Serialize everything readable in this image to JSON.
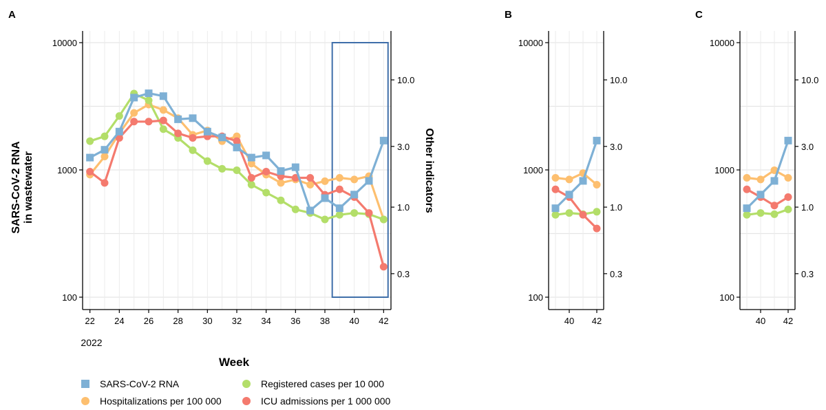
{
  "chart_data": [
    {
      "panel": "A",
      "type": "line",
      "x": [
        22,
        23,
        24,
        25,
        26,
        27,
        28,
        29,
        30,
        31,
        32,
        33,
        34,
        35,
        36,
        37,
        38,
        39,
        40,
        41,
        42
      ],
      "x_ticks": [
        22,
        24,
        26,
        28,
        30,
        32,
        34,
        36,
        38,
        40,
        42
      ],
      "xlim": [
        21.5,
        42.5
      ],
      "year_label": "2022",
      "xlabel": "Week",
      "ylabel_left": [
        "SARS-CoV-2 RNA",
        "in wastewater"
      ],
      "ylabel_right": "Other indicators",
      "left_scale": "log",
      "left_ylim": [
        80,
        15000
      ],
      "left_ticks": [
        {
          "v": 100,
          "label": "100"
        },
        {
          "v": 1000,
          "label": "1000"
        },
        {
          "v": 10000,
          "label": "10000"
        }
      ],
      "right_scale": "log",
      "right_ylim": [
        0.19,
        22
      ],
      "right_ticks": [
        {
          "v": 0.3,
          "label": "0.3"
        },
        {
          "v": 1.0,
          "label": "1.0"
        },
        {
          "v": 3.0,
          "label": "3.0"
        },
        {
          "v": 10.0,
          "label": "10.0"
        }
      ],
      "grid": true,
      "highlight_box": {
        "x": [
          38.5,
          42.3
        ],
        "y": [
          100,
          10000
        ],
        "color": "#3e6ea9"
      },
      "series": [
        {
          "name": "SARS-CoV-2 RNA",
          "axis": "left",
          "marker": "square",
          "color": "#7eb0d5",
          "values": [
            1250,
            1440,
            2000,
            3700,
            4000,
            3800,
            2500,
            2550,
            2000,
            1800,
            1500,
            1250,
            1300,
            980,
            1050,
            480,
            600,
            500,
            640,
            820,
            1700
          ]
        },
        {
          "name": "Hospitalizations per 100 000",
          "axis": "right",
          "marker": "circle",
          "color": "#fdbf6f",
          "values": [
            1.8,
            2.5,
            3.8,
            5.5,
            6.4,
            5.8,
            5.0,
            3.7,
            4.0,
            3.3,
            3.6,
            2.2,
            1.8,
            1.55,
            1.65,
            1.5,
            1.6,
            1.7,
            1.65,
            1.75,
            0.8
          ]
        },
        {
          "name": "Registered cases per 10 000",
          "axis": "right",
          "marker": "circle",
          "color": "#b3de69",
          "values": [
            3.3,
            3.6,
            5.2,
            7.8,
            6.9,
            4.1,
            3.5,
            2.8,
            2.3,
            2.0,
            1.95,
            1.5,
            1.3,
            1.13,
            0.96,
            0.9,
            0.8,
            0.87,
            0.9,
            0.88,
            0.8
          ]
        },
        {
          "name": "ICU admissions per 1 000 000",
          "axis": "right",
          "marker": "circle",
          "color": "#f47a6e",
          "values": [
            1.9,
            1.55,
            3.5,
            4.7,
            4.7,
            4.8,
            3.8,
            3.5,
            3.6,
            3.6,
            3.3,
            1.7,
            1.9,
            1.75,
            1.7,
            1.7,
            1.25,
            1.38,
            1.2,
            0.9,
            0.34
          ]
        }
      ]
    },
    {
      "panel": "B",
      "type": "line",
      "x": [
        39,
        40,
        41,
        42
      ],
      "x_ticks": [
        40,
        42
      ],
      "xlim": [
        38.5,
        42.5
      ],
      "left_scale": "log",
      "left_ylim": [
        80,
        15000
      ],
      "left_ticks": [
        {
          "v": 100,
          "label": "100"
        },
        {
          "v": 1000,
          "label": "1000"
        },
        {
          "v": 10000,
          "label": "10000"
        }
      ],
      "right_scale": "log",
      "right_ylim": [
        0.19,
        22
      ],
      "right_ticks": [
        {
          "v": 0.3,
          "label": "0.3"
        },
        {
          "v": 1.0,
          "label": "1.0"
        },
        {
          "v": 3.0,
          "label": "3.0"
        },
        {
          "v": 10.0,
          "label": "10.0"
        }
      ],
      "grid": true,
      "series": [
        {
          "name": "SARS-CoV-2 RNA",
          "axis": "left",
          "marker": "square",
          "color": "#7eb0d5",
          "values": [
            500,
            640,
            820,
            1700
          ]
        },
        {
          "name": "Hospitalizations per 100 000",
          "axis": "right",
          "marker": "circle",
          "color": "#fdbf6f",
          "values": [
            1.7,
            1.65,
            1.85,
            1.5
          ]
        },
        {
          "name": "Registered cases per 10 000",
          "axis": "right",
          "marker": "circle",
          "color": "#b3de69",
          "values": [
            0.87,
            0.9,
            0.88,
            0.92
          ]
        },
        {
          "name": "ICU admissions per 1 000 000",
          "axis": "right",
          "marker": "circle",
          "color": "#f47a6e",
          "values": [
            1.38,
            1.2,
            0.87,
            0.68
          ]
        }
      ]
    },
    {
      "panel": "C",
      "type": "line",
      "x": [
        39,
        40,
        41,
        42
      ],
      "x_ticks": [
        40,
        42
      ],
      "xlim": [
        38.5,
        42.5
      ],
      "left_scale": "log",
      "left_ylim": [
        80,
        15000
      ],
      "left_ticks": [
        {
          "v": 100,
          "label": "100"
        },
        {
          "v": 1000,
          "label": "1000"
        },
        {
          "v": 10000,
          "label": "10000"
        }
      ],
      "right_scale": "log",
      "right_ylim": [
        0.19,
        22
      ],
      "right_ticks": [
        {
          "v": 0.3,
          "label": "0.3"
        },
        {
          "v": 1.0,
          "label": "1.0"
        },
        {
          "v": 3.0,
          "label": "3.0"
        },
        {
          "v": 10.0,
          "label": "10.0"
        }
      ],
      "grid": true,
      "series": [
        {
          "name": "SARS-CoV-2 RNA",
          "axis": "left",
          "marker": "square",
          "color": "#7eb0d5",
          "values": [
            500,
            640,
            820,
            1700
          ]
        },
        {
          "name": "Hospitalizations per 100 000",
          "axis": "right",
          "marker": "circle",
          "color": "#fdbf6f",
          "values": [
            1.7,
            1.65,
            1.95,
            1.7
          ]
        },
        {
          "name": "Registered cases per 10 000",
          "axis": "right",
          "marker": "circle",
          "color": "#b3de69",
          "values": [
            0.87,
            0.9,
            0.88,
            0.96
          ]
        },
        {
          "name": "ICU admissions per 1 000 000",
          "axis": "right",
          "marker": "circle",
          "color": "#f47a6e",
          "values": [
            1.38,
            1.2,
            1.03,
            1.2
          ]
        }
      ]
    }
  ],
  "legend": {
    "placement": "bottom-left",
    "items": [
      {
        "label": "SARS-CoV-2 RNA",
        "marker": "square",
        "color": "#7eb0d5"
      },
      {
        "label": "Hospitalizations per 100 000",
        "marker": "circle",
        "color": "#fdbf6f"
      },
      {
        "label": "Registered cases per 10 000",
        "marker": "circle",
        "color": "#b3de69"
      },
      {
        "label": "ICU admissions per 1 000 000",
        "marker": "circle",
        "color": "#f47a6e"
      }
    ]
  }
}
